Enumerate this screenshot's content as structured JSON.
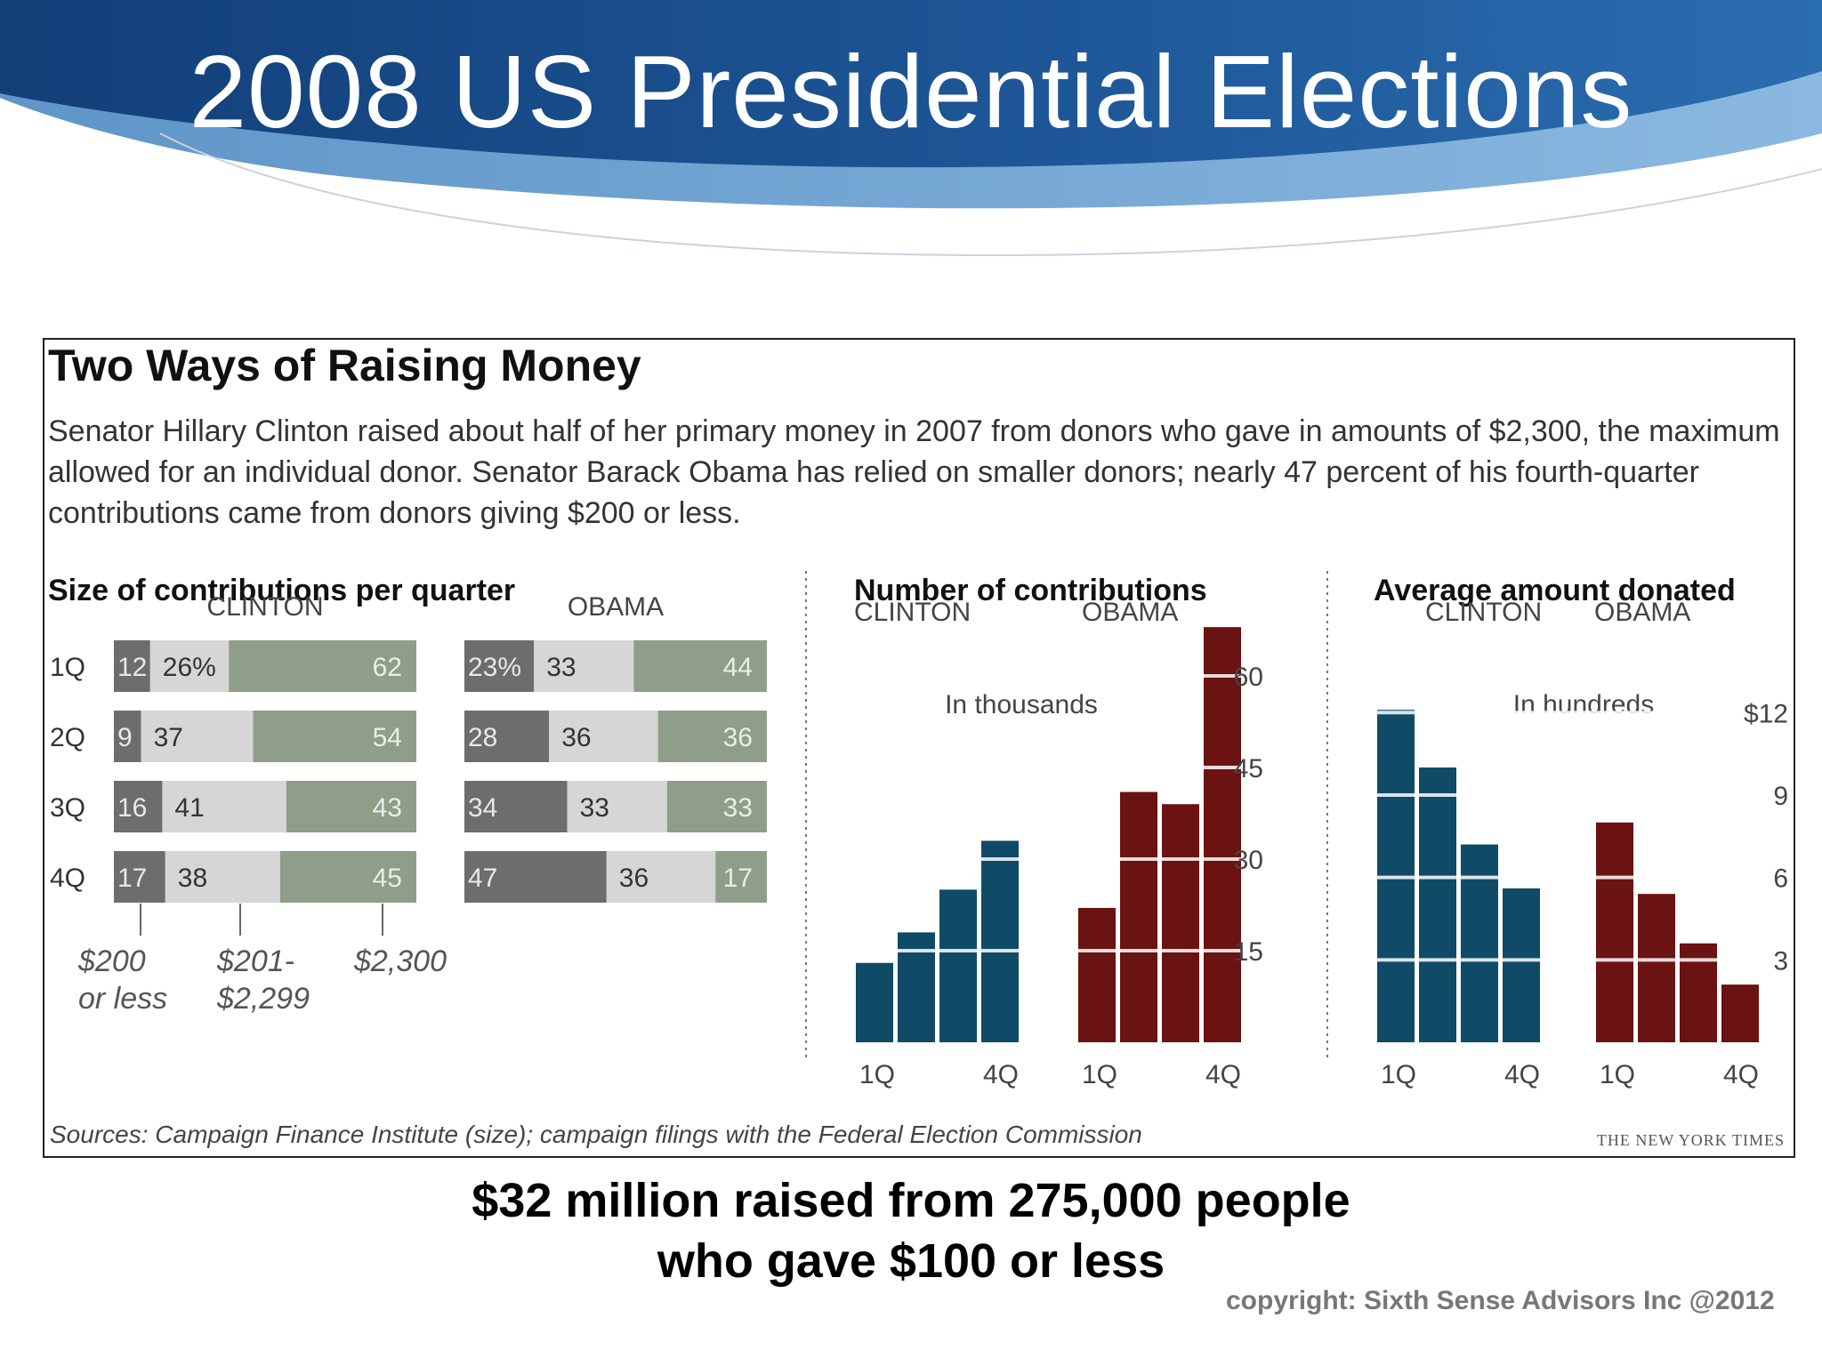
{
  "slide": {
    "title": "2008 US Presidential Elections",
    "colors": {
      "banner_dark": "#1b4a86",
      "banner_mid": "#3a76b5",
      "banner_light": "#7fb0dc"
    }
  },
  "figure": {
    "title": "Two Ways of Raising Money",
    "description": "Senator Hillary Clinton raised about half of her primary money in 2007 from donors who gave in amounts of $2,300, the maximum allowed for an individual donor. Senator Barack Obama has relied on smaller donors; nearly 47 percent of his fourth-quarter contributions came from donors giving $200 or less.",
    "source": "Sources: Campaign Finance Institute (size); campaign filings with the Federal Election Commission",
    "credit": "THE NEW YORK TIMES"
  },
  "chart_data": [
    {
      "type": "bar",
      "orientation": "horizontal-stacked",
      "title": "Size of contributions per quarter",
      "categories": [
        "1Q",
        "2Q",
        "3Q",
        "4Q"
      ],
      "groups": [
        {
          "name": "CLINTON",
          "series": [
            {
              "name": "$200 or less",
              "values": [
                12,
                9,
                16,
                17
              ],
              "labels": [
                "12",
                "9",
                "16",
                "17"
              ]
            },
            {
              "name": "$201- $2,299",
              "values": [
                26,
                37,
                41,
                38
              ],
              "labels": [
                "26%",
                "37",
                "41",
                "38"
              ]
            },
            {
              "name": "$2,300",
              "values": [
                62,
                54,
                43,
                45
              ],
              "labels": [
                "62",
                "54",
                "43",
                "45"
              ]
            }
          ]
        },
        {
          "name": "OBAMA",
          "series": [
            {
              "name": "$200 or less",
              "values": [
                23,
                28,
                34,
                47
              ],
              "labels": [
                "23%",
                "28",
                "34",
                "47"
              ]
            },
            {
              "name": "$201- $2,299",
              "values": [
                33,
                36,
                33,
                36
              ],
              "labels": [
                "33",
                "36",
                "33",
                "36"
              ]
            },
            {
              "name": "$2,300",
              "values": [
                44,
                36,
                33,
                17
              ],
              "labels": [
                "44",
                "36",
                "33",
                "17"
              ]
            }
          ]
        }
      ],
      "legend": {
        "label_1a": "$200",
        "label_1b": "or less",
        "label_2a": "$201-",
        "label_2b": "$2,299",
        "label_3a": "$2,300"
      },
      "colors": {
        "small": "#6d6d6d",
        "mid": "#d6d6d6",
        "max": "#8e9e88"
      }
    },
    {
      "type": "bar",
      "title": "Number of contributions",
      "unit_note": "In thousands",
      "categories": [
        "1Q",
        "2Q",
        "3Q",
        "4Q"
      ],
      "x_tick_labels": [
        "1Q",
        "4Q"
      ],
      "series": [
        {
          "name": "CLINTON",
          "values": [
            13,
            18,
            25,
            33
          ],
          "color": "#0f4b66"
        },
        {
          "name": "OBAMA",
          "values": [
            22,
            41,
            39,
            68
          ],
          "color": "#6b1212"
        }
      ],
      "yticks": [
        15,
        30,
        45,
        60
      ],
      "ylim": [
        0,
        67
      ]
    },
    {
      "type": "bar",
      "title": "Average amount donated",
      "unit_note": "In hundreds",
      "categories": [
        "1Q",
        "2Q",
        "3Q",
        "4Q"
      ],
      "x_tick_labels": [
        "1Q",
        "4Q"
      ],
      "series": [
        {
          "name": "CLINTON",
          "values": [
            12.1,
            10,
            7.2,
            5.6
          ],
          "color": "#0f4b66"
        },
        {
          "name": "OBAMA",
          "values": [
            8,
            5.4,
            3.6,
            2.1
          ],
          "color": "#6b1212"
        }
      ],
      "yticks": [
        3,
        6,
        9
      ],
      "ytick_labels": [
        "3",
        "6",
        "9",
        "$12"
      ],
      "ytick_values": [
        3,
        6,
        9,
        12
      ],
      "ylim": [
        0,
        12.3
      ]
    }
  ],
  "tagline": {
    "line1": "$32 million raised from 275,000 people",
    "line2": "who gave $100 or less"
  },
  "copyright": "copyright: Sixth Sense Advisors Inc @2012"
}
